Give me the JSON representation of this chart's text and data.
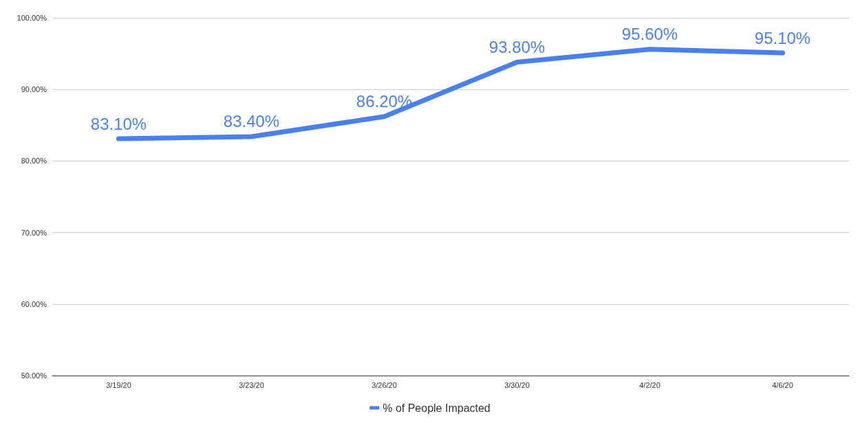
{
  "chart_data": {
    "type": "line",
    "categories": [
      "3/19/20",
      "3/23/20",
      "3/26/20",
      "3/30/20",
      "4/2/20",
      "4/6/20"
    ],
    "series": [
      {
        "name": "% of People Impacted",
        "color": "#4a7ff0",
        "values": [
          83.1,
          83.4,
          86.2,
          93.8,
          95.6,
          95.1
        ],
        "value_labels": [
          "83.10%",
          "83.40%",
          "86.20%",
          "93.80%",
          "95.60%",
          "95.10%"
        ]
      }
    ],
    "ylim": [
      50,
      100
    ],
    "yticks": [
      {
        "value": 50,
        "label": "50.00%"
      },
      {
        "value": 60,
        "label": "60.00%"
      },
      {
        "value": 70,
        "label": "70.00%"
      },
      {
        "value": 80,
        "label": "80.00%"
      },
      {
        "value": 90,
        "label": "90.00%"
      },
      {
        "value": 100,
        "label": "100.00%"
      }
    ],
    "grid": "y",
    "legend": "bottom",
    "marker": "none",
    "line_style": "solid"
  }
}
